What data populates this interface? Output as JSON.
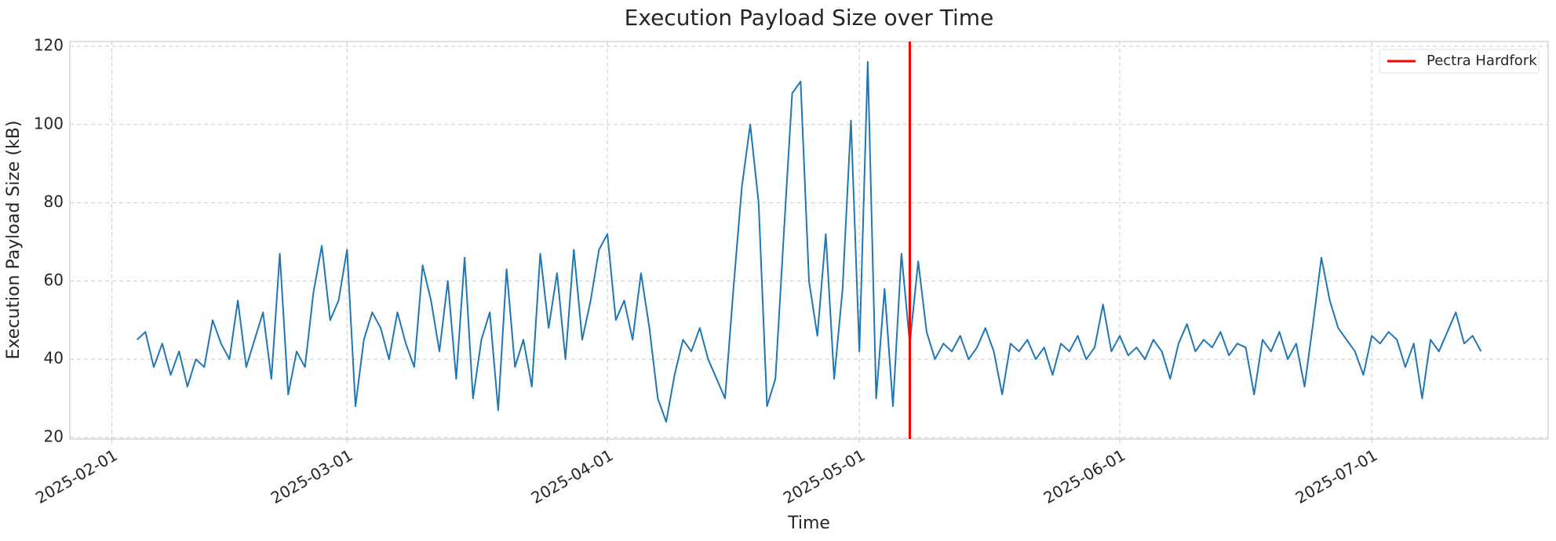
{
  "chart_data": {
    "type": "line",
    "title": "Execution Payload Size over Time",
    "x_label": "Time",
    "y_label": "Execution Payload Size (kB)",
    "xlim": [
      "2025-01-27",
      "2025-07-22"
    ],
    "xticks": [
      "2025-02-01",
      "2025-03-01",
      "2025-04-01",
      "2025-05-01",
      "2025-06-01",
      "2025-07-01"
    ],
    "ylim": [
      19.6,
      121.2
    ],
    "yticks": [
      20,
      40,
      60,
      80,
      100,
      120
    ],
    "grid": true,
    "legend": "upper right",
    "x": [
      "2025-02-04",
      "2025-02-05",
      "2025-02-06",
      "2025-02-07",
      "2025-02-08",
      "2025-02-09",
      "2025-02-10",
      "2025-02-11",
      "2025-02-12",
      "2025-02-13",
      "2025-02-14",
      "2025-02-15",
      "2025-02-16",
      "2025-02-17",
      "2025-02-18",
      "2025-02-19",
      "2025-02-20",
      "2025-02-21",
      "2025-02-22",
      "2025-02-23",
      "2025-02-24",
      "2025-02-25",
      "2025-02-26",
      "2025-02-27",
      "2025-02-28",
      "2025-03-01",
      "2025-03-02",
      "2025-03-03",
      "2025-03-04",
      "2025-03-05",
      "2025-03-06",
      "2025-03-07",
      "2025-03-08",
      "2025-03-09",
      "2025-03-10",
      "2025-03-11",
      "2025-03-12",
      "2025-03-13",
      "2025-03-14",
      "2025-03-15",
      "2025-03-16",
      "2025-03-17",
      "2025-03-18",
      "2025-03-19",
      "2025-03-20",
      "2025-03-21",
      "2025-03-22",
      "2025-03-23",
      "2025-03-24",
      "2025-03-25",
      "2025-03-26",
      "2025-03-27",
      "2025-03-28",
      "2025-03-29",
      "2025-03-30",
      "2025-03-31",
      "2025-04-01",
      "2025-04-02",
      "2025-04-03",
      "2025-04-04",
      "2025-04-05",
      "2025-04-06",
      "2025-04-07",
      "2025-04-08",
      "2025-04-09",
      "2025-04-10",
      "2025-04-11",
      "2025-04-12",
      "2025-04-13",
      "2025-04-14",
      "2025-04-15",
      "2025-04-16",
      "2025-04-17",
      "2025-04-18",
      "2025-04-19",
      "2025-04-20",
      "2025-04-21",
      "2025-04-22",
      "2025-04-23",
      "2025-04-24",
      "2025-04-25",
      "2025-04-26",
      "2025-04-27",
      "2025-04-28",
      "2025-04-29",
      "2025-04-30",
      "2025-05-01",
      "2025-05-02",
      "2025-05-03",
      "2025-05-04",
      "2025-05-05",
      "2025-05-06",
      "2025-05-07",
      "2025-05-08",
      "2025-05-09",
      "2025-05-10",
      "2025-05-11",
      "2025-05-12",
      "2025-05-13",
      "2025-05-14",
      "2025-05-15",
      "2025-05-16",
      "2025-05-17",
      "2025-05-18",
      "2025-05-19",
      "2025-05-20",
      "2025-05-21",
      "2025-05-22",
      "2025-05-23",
      "2025-05-24",
      "2025-05-25",
      "2025-05-26",
      "2025-05-27",
      "2025-05-28",
      "2025-05-29",
      "2025-05-30",
      "2025-05-31",
      "2025-06-01",
      "2025-06-02",
      "2025-06-03",
      "2025-06-04",
      "2025-06-05",
      "2025-06-06",
      "2025-06-07",
      "2025-06-08",
      "2025-06-09",
      "2025-06-10",
      "2025-06-11",
      "2025-06-12",
      "2025-06-13",
      "2025-06-14",
      "2025-06-15",
      "2025-06-16",
      "2025-06-17",
      "2025-06-18",
      "2025-06-19",
      "2025-06-20",
      "2025-06-21",
      "2025-06-22",
      "2025-06-23",
      "2025-06-24",
      "2025-06-25",
      "2025-06-26",
      "2025-06-27",
      "2025-06-28",
      "2025-06-29",
      "2025-06-30",
      "2025-07-01",
      "2025-07-02",
      "2025-07-03",
      "2025-07-04",
      "2025-07-05",
      "2025-07-06",
      "2025-07-07",
      "2025-07-08",
      "2025-07-09",
      "2025-07-10",
      "2025-07-11",
      "2025-07-12",
      "2025-07-13",
      "2025-07-14"
    ],
    "series": [
      {
        "name": null,
        "color": "#1f77b4",
        "values": [
          45,
          47,
          38,
          44,
          36,
          42,
          33,
          40,
          38,
          50,
          44,
          40,
          55,
          38,
          45,
          52,
          35,
          67,
          31,
          42,
          38,
          57,
          69,
          50,
          55,
          68,
          28,
          45,
          52,
          48,
          40,
          52,
          44,
          38,
          64,
          55,
          42,
          60,
          35,
          66,
          30,
          45,
          52,
          27,
          63,
          38,
          45,
          33,
          67,
          48,
          62,
          40,
          68,
          45,
          55,
          68,
          72,
          50,
          55,
          45,
          62,
          48,
          30,
          24,
          36,
          45,
          42,
          48,
          40,
          35,
          30,
          58,
          84,
          100,
          80,
          28,
          35,
          72,
          108,
          111,
          60,
          46,
          72,
          35,
          58,
          101,
          42,
          116,
          30,
          58,
          28,
          67,
          44,
          65,
          47,
          40,
          44,
          42,
          46,
          40,
          43,
          48,
          42,
          31,
          44,
          42,
          45,
          40,
          43,
          36,
          44,
          42,
          46,
          40,
          43,
          54,
          42,
          46,
          41,
          43,
          40,
          45,
          42,
          35,
          44,
          49,
          42,
          45,
          43,
          47,
          41,
          44,
          43,
          31,
          45,
          42,
          47,
          40,
          44,
          33,
          49,
          66,
          55,
          48,
          45,
          42,
          36,
          46,
          44,
          47,
          45,
          38,
          44,
          30,
          45,
          42,
          47,
          52,
          44,
          46,
          42
        ]
      }
    ],
    "vlines": [
      {
        "name": "Pectra Hardfork",
        "x": "2025-05-07",
        "color": "#ff0000"
      }
    ]
  }
}
